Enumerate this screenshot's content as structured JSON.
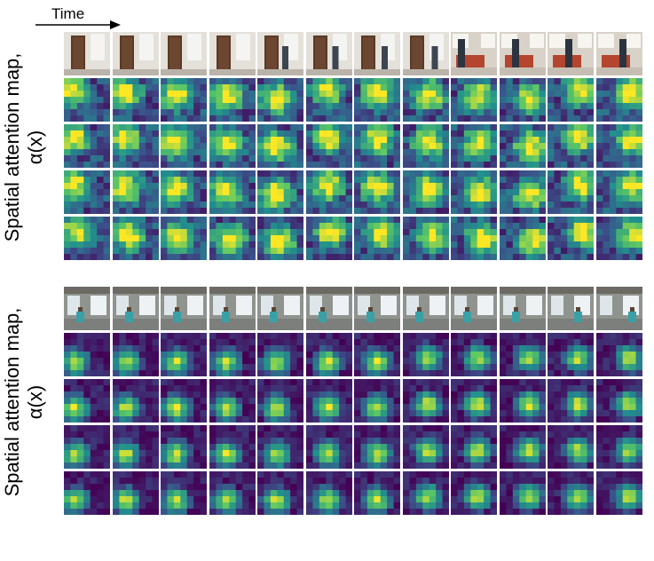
{
  "figure": {
    "time_label": "Time",
    "ylabel_line1": "Spatial attention map,",
    "ylabel_line2": "α(x)",
    "frames_per_row": 12,
    "map_rows_per_block": 4,
    "colormap": [
      "#440154",
      "#3b528b",
      "#21908d",
      "#5dc863",
      "#fde725"
    ]
  },
  "blocks": [
    {
      "name": "top-scene",
      "scene": "doorway, person walks into room toward bed"
    },
    {
      "name": "bottom-scene",
      "scene": "room with windows, person seated on floor"
    }
  ]
}
